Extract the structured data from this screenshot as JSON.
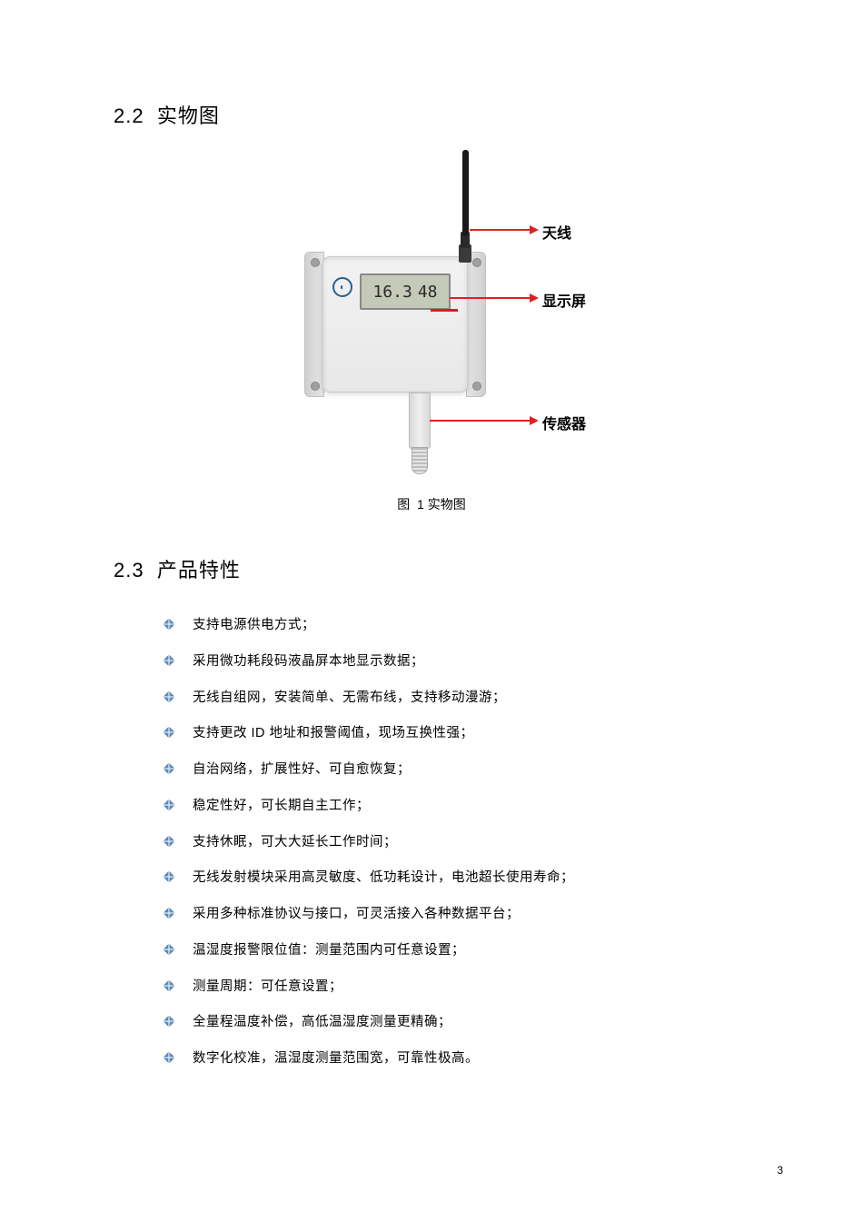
{
  "sections": {
    "physical": {
      "number": "2.2",
      "title": "实物图"
    },
    "features": {
      "number": "2.3",
      "title": "产品特性"
    }
  },
  "figure": {
    "caption_prefix": "图",
    "caption_number": "1",
    "caption_text": "实物图",
    "lcd_temp": "16.3",
    "lcd_hum": "48",
    "callouts": {
      "antenna": "天线",
      "display": "显示屏",
      "sensor": "传感器"
    },
    "callout_color": "#e02020",
    "device_body_color": "#e8e8e8",
    "lcd_bg_color": "#c5c9b8",
    "antenna_color": "#1a1a1a"
  },
  "features_list": [
    "支持电源供电方式；",
    "采用微功耗段码液晶屏本地显示数据；",
    "无线自组网，安装简单、无需布线，支持移动漫游；",
    "支持更改  ID 地址和报警阈值，现场互换性强；",
    "自治网络，扩展性好、可自愈恢复；",
    "稳定性好，可长期自主工作；",
    "支持休眠，可大大延长工作时间；",
    "无线发射模块采用高灵敏度、低功耗设计，电池超长使用寿命；",
    "采用多种标准协议与接口，可灵活接入各种数据平台；",
    "温湿度报警限位值：测量范围内可任意设置；",
    "测量周期：可任意设置；",
    "全量程温度补偿，高低温湿度测量更精确；",
    "数字化校准，温湿度测量范围宽，可靠性极高。"
  ],
  "bullet_style": {
    "fill_color": "#5d8fbf",
    "stroke_color": "#3a6a9a"
  },
  "page_number": "3"
}
